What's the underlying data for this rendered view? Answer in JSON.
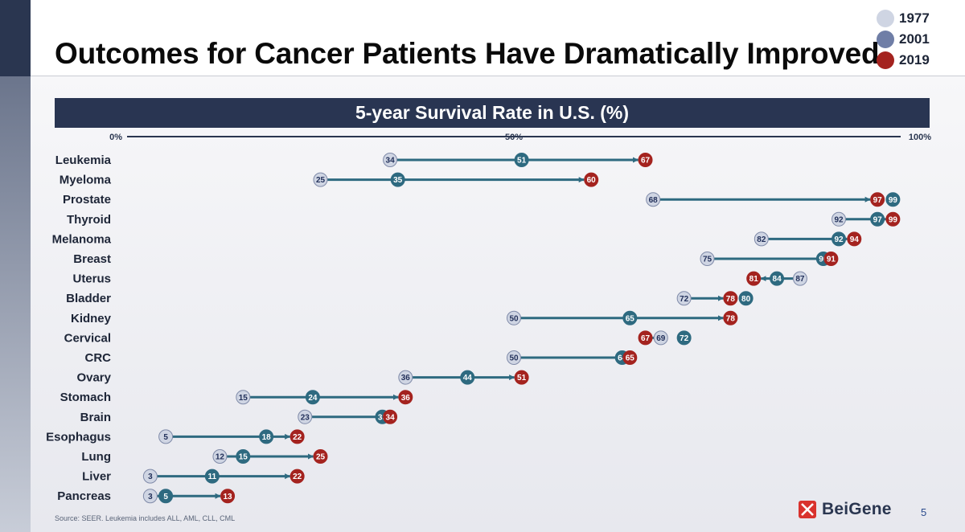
{
  "page": {
    "title": "Outcomes for Cancer Patients Have Dramatically Improved",
    "subtitle": "5-year Survival Rate in U.S. (%)",
    "source": "Source: SEER. Leukemia includes ALL, AML, CLL, CML",
    "logo_text": "BeiGene",
    "page_number": "5"
  },
  "legend": [
    {
      "label": "1977",
      "color": "#cfd5e3"
    },
    {
      "label": "2001",
      "color": "#6f7ea6"
    },
    {
      "label": "2019",
      "color": "#a4231f"
    }
  ],
  "colors": {
    "y1977_fill": "#cfd5e3",
    "y1977_stroke": "#7f8aa8",
    "y1977_text": "#22305a",
    "y2001": "#2e6a80",
    "y2019": "#a4231f",
    "arrow": "#2e6a80",
    "header_bar": "#293552"
  },
  "chart_data": {
    "type": "dumbbell",
    "title": "5-year Survival Rate in U.S. (%)",
    "xlim": [
      0,
      100
    ],
    "ticks": [
      {
        "value": 0,
        "label": "0%"
      },
      {
        "value": 50,
        "label": "50%"
      },
      {
        "value": 100,
        "label": "100%"
      }
    ],
    "series_names": [
      "1977",
      "2001",
      "2019"
    ],
    "categories": [
      "Leukemia",
      "Myeloma",
      "Prostate",
      "Thyroid",
      "Melanoma",
      "Breast",
      "Uterus",
      "Bladder",
      "Kidney",
      "Cervical",
      "CRC",
      "Ovary",
      "Stomach",
      "Brain",
      "Esophagus",
      "Lung",
      "Liver",
      "Pancreas"
    ],
    "values": {
      "1977": [
        34,
        25,
        68,
        92,
        82,
        75,
        87,
        72,
        50,
        69,
        50,
        36,
        15,
        23,
        5,
        12,
        3,
        3
      ],
      "2001": [
        51,
        35,
        99,
        97,
        92,
        90,
        84,
        80,
        65,
        72,
        64,
        44,
        24,
        33,
        18,
        15,
        11,
        5
      ],
      "2019": [
        67,
        60,
        97,
        99,
        94,
        91,
        81,
        78,
        78,
        67,
        65,
        51,
        36,
        34,
        22,
        25,
        22,
        13
      ]
    }
  }
}
